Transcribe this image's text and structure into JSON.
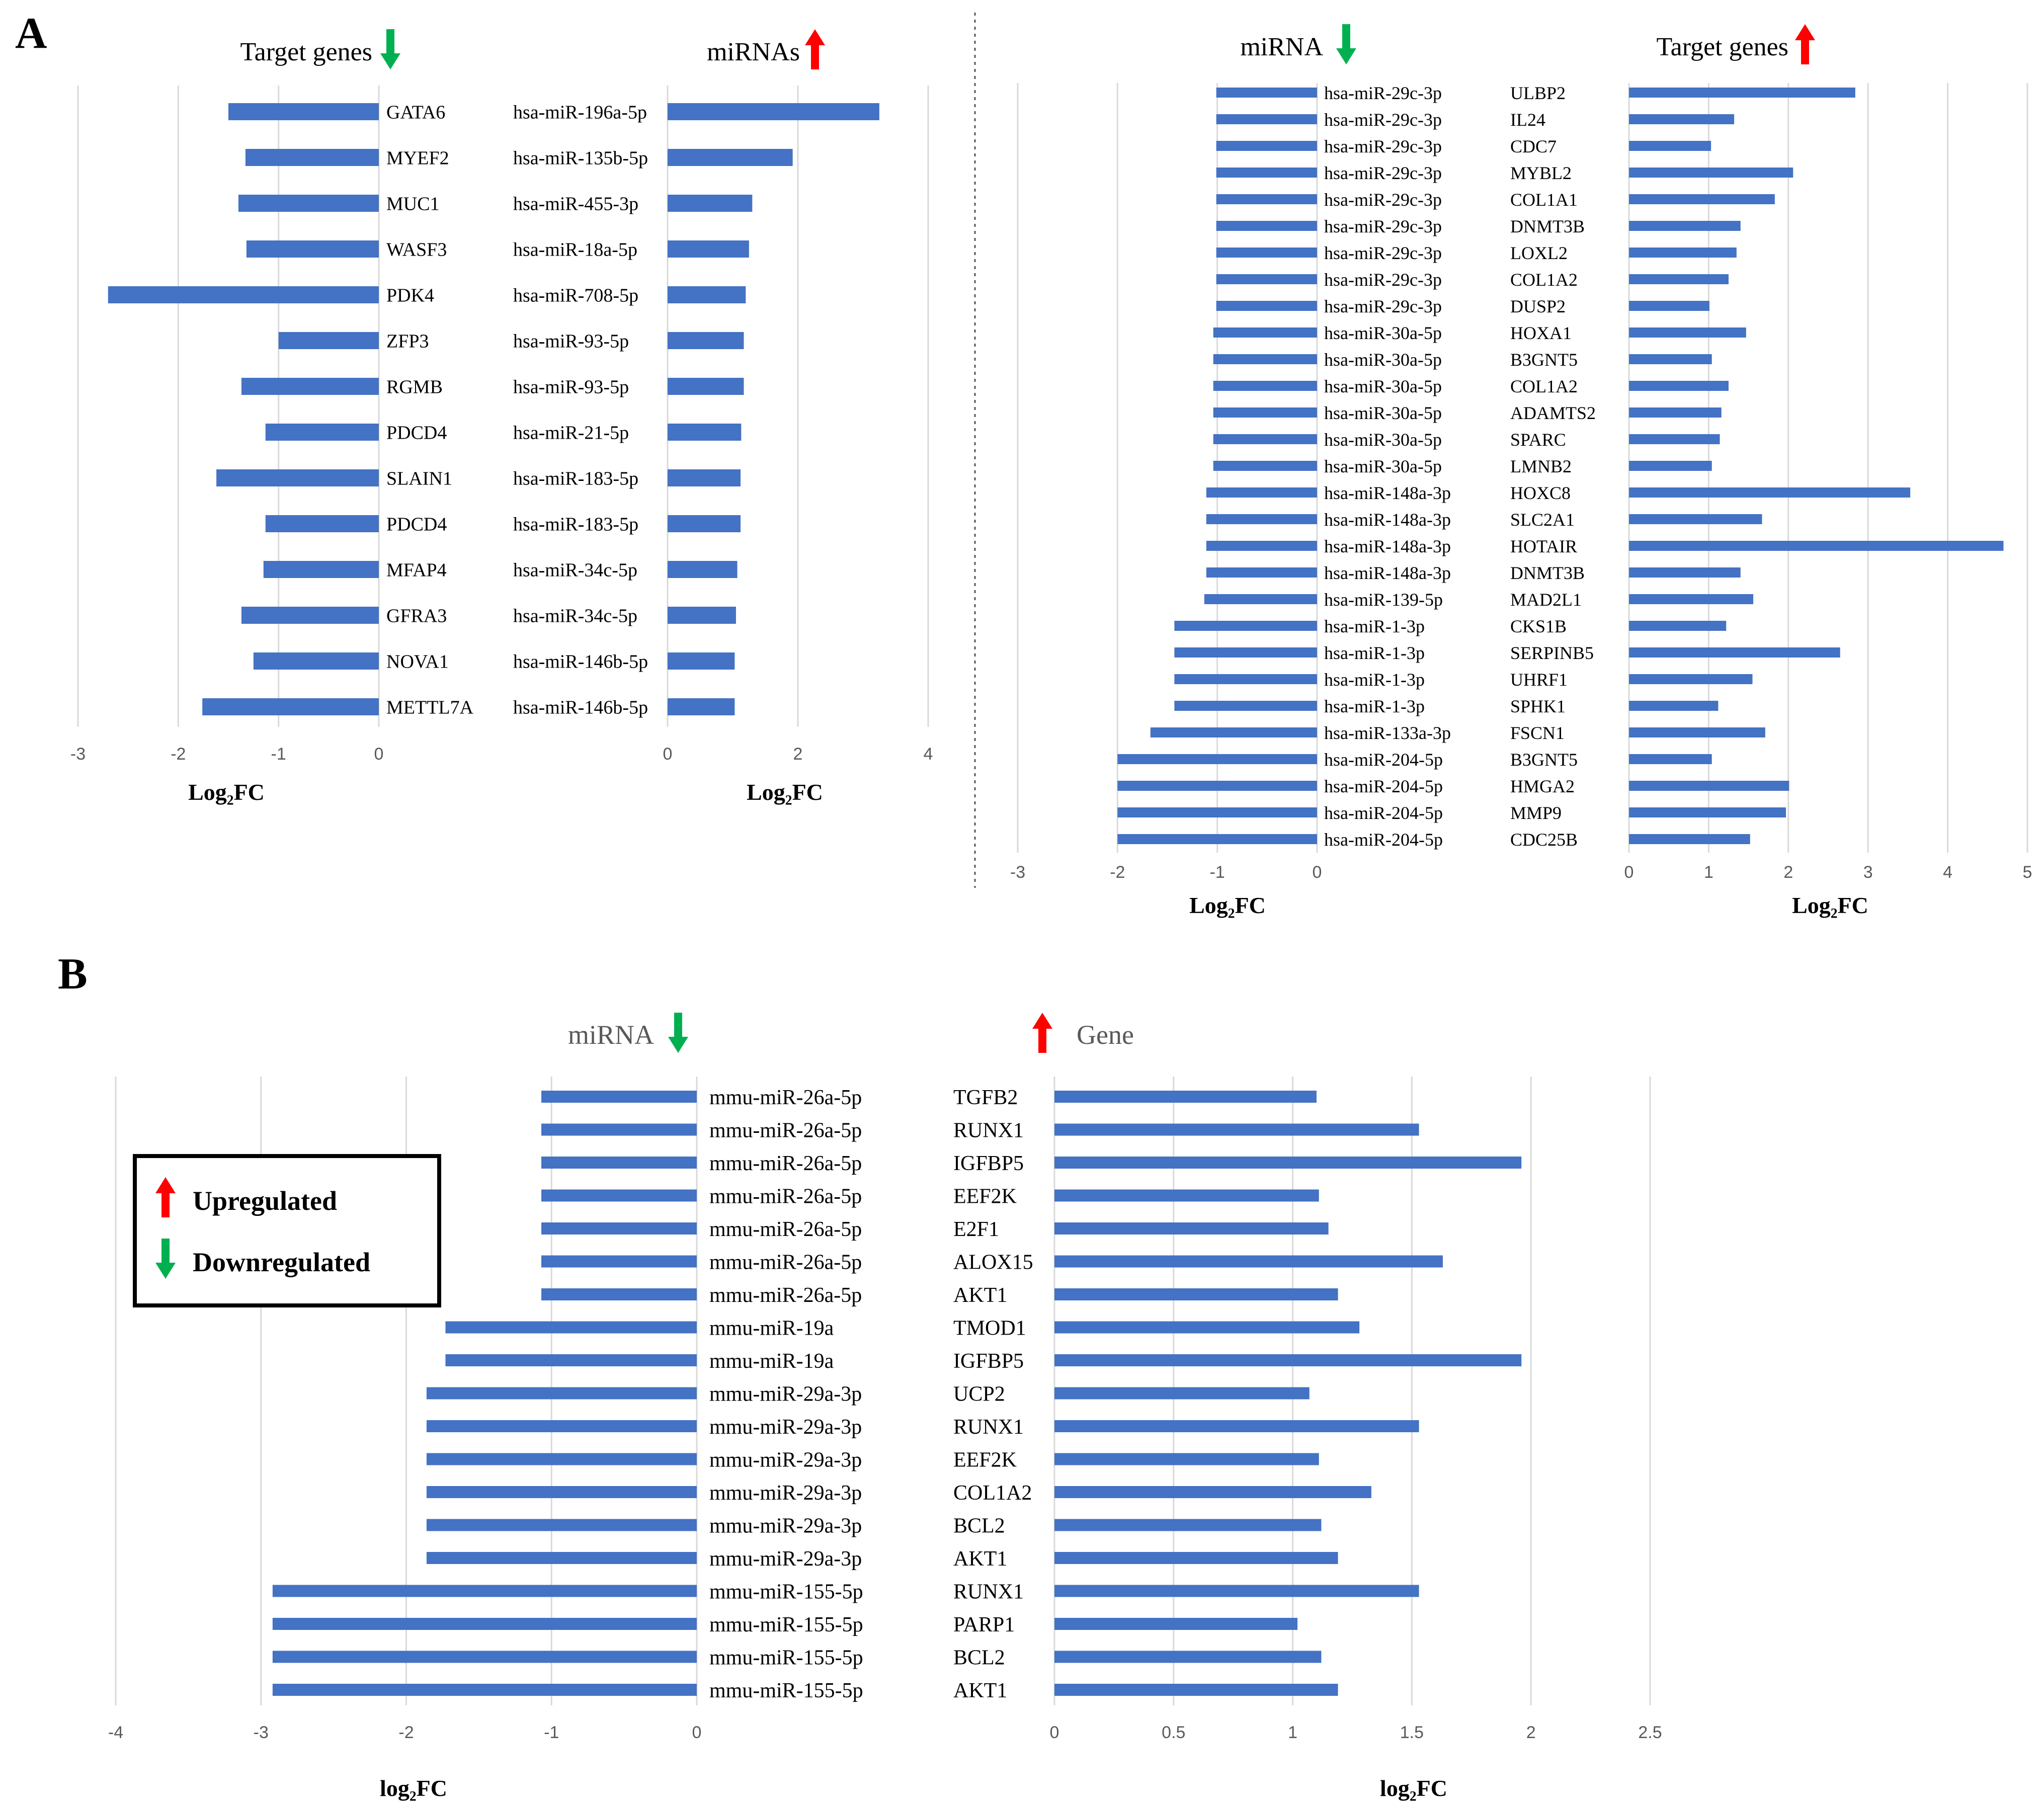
{
  "figure": {
    "panel_a_label": "A",
    "panel_b_label": "B",
    "legend_up_label": "Upregulated",
    "legend_down_label": "Downregulated"
  },
  "colors": {
    "bar": "#4472c4",
    "up_arrow": "#ff0000",
    "down_arrow": "#00b050",
    "grid": "#d9d9d9",
    "text": "#000000",
    "tick_text": "#595959"
  },
  "chart_data": [
    {
      "id": "A1",
      "type": "bar",
      "orientation": "horizontal",
      "left_header": "Target genes",
      "left_arrow": "down",
      "right_header": "miRNAs",
      "right_arrow": "up",
      "left_xlabel": "Log₂FC",
      "right_xlabel": "Log₂FC",
      "left_xlim": [
        -3,
        0
      ],
      "left_ticks": [
        "-3",
        "-2",
        "-1",
        "0"
      ],
      "right_xlim": [
        0,
        4
      ],
      "right_ticks": [
        "0",
        "2",
        "4"
      ],
      "left_categories": [
        "GATA6",
        "MYEF2",
        "MUC1",
        "WASF3",
        "PDK4",
        "ZFP3",
        "RGMB",
        "PDCD4",
        "SLAIN1",
        "PDCD4",
        "MFAP4",
        "GFRA3",
        "NOVA1",
        "METTL7A"
      ],
      "left_values": [
        -1.5,
        -1.33,
        -1.4,
        -1.32,
        -2.7,
        -1.0,
        -1.37,
        -1.13,
        -1.62,
        -1.13,
        -1.15,
        -1.37,
        -1.25,
        -1.76
      ],
      "right_categories": [
        "hsa-miR-196a-5p",
        "hsa-miR-135b-5p",
        "hsa-miR-455-3p",
        "hsa-miR-18a-5p",
        "hsa-miR-708-5p",
        "hsa-miR-93-5p",
        "hsa-miR-93-5p",
        "hsa-miR-21-5p",
        "hsa-miR-183-5p",
        "hsa-miR-183-5p",
        "hsa-miR-34c-5p",
        "hsa-miR-34c-5p",
        "hsa-miR-146b-5p",
        "hsa-miR-146b-5p"
      ],
      "right_values": [
        3.25,
        1.92,
        1.3,
        1.25,
        1.2,
        1.17,
        1.17,
        1.13,
        1.12,
        1.12,
        1.07,
        1.05,
        1.03,
        1.03
      ]
    },
    {
      "id": "A2",
      "type": "bar",
      "orientation": "horizontal",
      "left_header": "miRNA",
      "left_arrow": "down",
      "right_header": "Target genes",
      "right_arrow": "up",
      "left_xlabel": "Log₂FC",
      "right_xlabel": "Log₂FC",
      "left_xlim": [
        -3,
        0
      ],
      "left_ticks": [
        "-3",
        "-2",
        "-1",
        "0"
      ],
      "right_xlim": [
        0,
        5
      ],
      "right_ticks": [
        "0",
        "1",
        "2",
        "3",
        "4",
        "5"
      ],
      "left_categories": [
        "hsa-miR-29c-3p",
        "hsa-miR-29c-3p",
        "hsa-miR-29c-3p",
        "hsa-miR-29c-3p",
        "hsa-miR-29c-3p",
        "hsa-miR-29c-3p",
        "hsa-miR-29c-3p",
        "hsa-miR-29c-3p",
        "hsa-miR-29c-3p",
        "hsa-miR-30a-5p",
        "hsa-miR-30a-5p",
        "hsa-miR-30a-5p",
        "hsa-miR-30a-5p",
        "hsa-miR-30a-5p",
        "hsa-miR-30a-5p",
        "hsa-miR-148a-3p",
        "hsa-miR-148a-3p",
        "hsa-miR-148a-3p",
        "hsa-miR-148a-3p",
        "hsa-miR-139-5p",
        "hsa-miR-1-3p",
        "hsa-miR-1-3p",
        "hsa-miR-1-3p",
        "hsa-miR-1-3p",
        "hsa-miR-133a-3p",
        "hsa-miR-204-5p",
        "hsa-miR-204-5p",
        "hsa-miR-204-5p",
        "hsa-miR-204-5p"
      ],
      "left_values": [
        -1.01,
        -1.01,
        -1.01,
        -1.01,
        -1.01,
        -1.01,
        -1.01,
        -1.01,
        -1.01,
        -1.04,
        -1.04,
        -1.04,
        -1.04,
        -1.04,
        -1.04,
        -1.11,
        -1.11,
        -1.11,
        -1.11,
        -1.13,
        -1.43,
        -1.43,
        -1.43,
        -1.43,
        -1.67,
        -2.0,
        -2.0,
        -2.0,
        -2.0
      ],
      "right_categories": [
        "ULBP2",
        "IL24",
        "CDC7",
        "MYBL2",
        "COL1A1",
        "DNMT3B",
        "LOXL2",
        "COL1A2",
        "DUSP2",
        "HOXA1",
        "B3GNT5",
        "COL1A2",
        "ADAMTS2",
        "SPARC",
        "LMNB2",
        "HOXC8",
        "SLC2A1",
        "HOTAIR",
        "DNMT3B",
        "MAD2L1",
        "CKS1B",
        "SERPINB5",
        "UHRF1",
        "SPHK1",
        "FSCN1",
        "B3GNT5",
        "HMGA2",
        "MMP9",
        "CDC25B"
      ],
      "right_values": [
        2.84,
        1.32,
        1.03,
        2.06,
        1.83,
        1.4,
        1.35,
        1.25,
        1.01,
        1.47,
        1.04,
        1.25,
        1.16,
        1.14,
        1.04,
        3.53,
        1.67,
        4.7,
        1.4,
        1.56,
        1.22,
        2.65,
        1.55,
        1.12,
        1.71,
        1.04,
        2.01,
        1.97,
        1.52
      ]
    },
    {
      "id": "B",
      "type": "bar",
      "orientation": "horizontal",
      "left_header": "miRNA",
      "left_arrow": "down",
      "right_header": "Gene",
      "right_arrow": "up",
      "left_xlabel": "log₂FC",
      "right_xlabel": "log₂FC",
      "left_xlim": [
        -4,
        0
      ],
      "left_ticks": [
        "-4",
        "-3",
        "-2",
        "-1",
        "0"
      ],
      "right_xlim": [
        0,
        2.5
      ],
      "right_ticks": [
        "0",
        "0.5",
        "1",
        "1.5",
        "2",
        "2.5"
      ],
      "left_categories": [
        "mmu-miR-26a-5p",
        "mmu-miR-26a-5p",
        "mmu-miR-26a-5p",
        "mmu-miR-26a-5p",
        "mmu-miR-26a-5p",
        "mmu-miR-26a-5p",
        "mmu-miR-26a-5p",
        "mmu-miR-19a",
        "mmu-miR-19a",
        "mmu-miR-29a-3p",
        "mmu-miR-29a-3p",
        "mmu-miR-29a-3p",
        "mmu-miR-29a-3p",
        "mmu-miR-29a-3p",
        "mmu-miR-29a-3p",
        "mmu-miR-155-5p",
        "mmu-miR-155-5p",
        "mmu-miR-155-5p",
        "mmu-miR-155-5p"
      ],
      "left_values": [
        -1.07,
        -1.07,
        -1.07,
        -1.07,
        -1.07,
        -1.07,
        -1.07,
        -1.73,
        -1.73,
        -1.86,
        -1.86,
        -1.86,
        -1.86,
        -1.86,
        -1.86,
        -2.92,
        -2.92,
        -2.92,
        -2.92
      ],
      "right_categories": [
        "TGFB2",
        "RUNX1",
        "IGFBP5",
        "EEF2K",
        "E2F1",
        "ALOX15",
        "AKT1",
        "TMOD1",
        "IGFBP5",
        "UCP2",
        "RUNX1",
        "EEF2K",
        "COL1A2",
        "BCL2",
        "AKT1",
        "RUNX1",
        "PARP1",
        "BCL2",
        "AKT1"
      ],
      "right_values": [
        1.1,
        1.53,
        1.96,
        1.11,
        1.15,
        1.63,
        1.19,
        1.28,
        1.96,
        1.07,
        1.53,
        1.11,
        1.33,
        1.12,
        1.19,
        1.53,
        1.02,
        1.12,
        1.19
      ]
    }
  ]
}
